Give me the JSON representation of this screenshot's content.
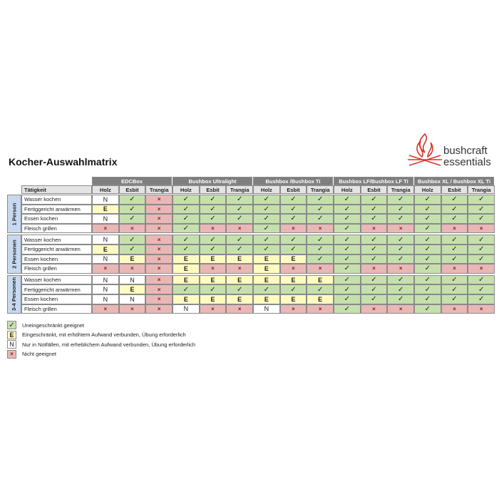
{
  "title": "Kocher-Auswahlmatrix",
  "logo": {
    "line1": "bushcraft",
    "line2": "essentials"
  },
  "table": {
    "activity_header": "Tätigkeit",
    "groups": [
      {
        "name": "EDCBox",
        "fuels": [
          "Holz",
          "Esbit",
          "Trangia"
        ]
      },
      {
        "name": "Bushbox Ultralight",
        "fuels": [
          "Holz",
          "Esbit",
          "Trangia"
        ]
      },
      {
        "name": "Bushbox /Bushbox Ti",
        "fuels": [
          "Holz",
          "Esbit",
          "Trangia"
        ]
      },
      {
        "name": "Bushbox LF/Bushbox LF Ti",
        "fuels": [
          "Holz",
          "Esbit",
          "Trangia"
        ]
      },
      {
        "name": "Bushbox XL / Bushbox XL Ti",
        "fuels": [
          "Holz",
          "Esbit",
          "Trangia"
        ]
      }
    ],
    "row_groups": [
      {
        "label": "1 Person",
        "rows": [
          {
            "activity": "Wasser kochen",
            "cells": [
              "N",
              "✓",
              "×",
              "✓",
              "✓",
              "✓",
              "✓",
              "✓",
              "✓",
              "✓",
              "✓",
              "✓",
              "✓",
              "✓",
              "✓"
            ]
          },
          {
            "activity": "Fertiggericht anwärmen",
            "cells": [
              "E",
              "✓",
              "×",
              "✓",
              "✓",
              "✓",
              "✓",
              "✓",
              "✓",
              "✓",
              "✓",
              "✓",
              "✓",
              "✓",
              "✓"
            ]
          },
          {
            "activity": "Essen kochen",
            "cells": [
              "N",
              "✓",
              "×",
              "✓",
              "✓",
              "✓",
              "✓",
              "✓",
              "✓",
              "✓",
              "✓",
              "✓",
              "✓",
              "✓",
              "✓"
            ]
          },
          {
            "activity": "Fleisch grillen",
            "cells": [
              "×",
              "×",
              "×",
              "✓",
              "×",
              "×",
              "✓",
              "×",
              "×",
              "✓",
              "×",
              "×",
              "✓",
              "×",
              "×"
            ]
          }
        ]
      },
      {
        "label": "2 Personen",
        "rows": [
          {
            "activity": "Wasser kochen",
            "cells": [
              "N",
              "✓",
              "×",
              "✓",
              "✓",
              "✓",
              "✓",
              "✓",
              "✓",
              "✓",
              "✓",
              "✓",
              "✓",
              "✓",
              "✓"
            ]
          },
          {
            "activity": "Fertiggericht anwärmen",
            "cells": [
              "E",
              "✓",
              "×",
              "✓",
              "✓",
              "✓",
              "✓",
              "✓",
              "✓",
              "✓",
              "✓",
              "✓",
              "✓",
              "✓",
              "✓"
            ]
          },
          {
            "activity": "Essen kochen",
            "cells": [
              "N",
              "E",
              "×",
              "E",
              "E",
              "E",
              "E",
              "E",
              "✓",
              "✓",
              "✓",
              "✓",
              "✓",
              "✓",
              "✓"
            ]
          },
          {
            "activity": "Fleisch grillen",
            "cells": [
              "×",
              "×",
              "×",
              "E",
              "×",
              "×",
              "E",
              "×",
              "×",
              "✓",
              "×",
              "×",
              "✓",
              "×",
              "×"
            ]
          }
        ]
      },
      {
        "label": "3-4 Personen",
        "rows": [
          {
            "activity": "Wasser kochen",
            "cells": [
              "N",
              "N",
              "×",
              "E",
              "E",
              "E",
              "E",
              "E",
              "E",
              "✓",
              "✓",
              "✓",
              "✓",
              "✓",
              "✓"
            ]
          },
          {
            "activity": "Fertiggericht anwärmen",
            "cells": [
              "N",
              "E",
              "×",
              "✓",
              "✓",
              "✓",
              "✓",
              "✓",
              "✓",
              "✓",
              "✓",
              "✓",
              "✓",
              "✓",
              "✓"
            ]
          },
          {
            "activity": "Essen kochen",
            "cells": [
              "N",
              "N",
              "×",
              "E",
              "E",
              "E",
              "E",
              "E",
              "E",
              "✓",
              "✓",
              "✓",
              "✓",
              "✓",
              "✓"
            ]
          },
          {
            "activity": "Fleisch grillen",
            "cells": [
              "×",
              "×",
              "×",
              "N",
              "×",
              "×",
              "N",
              "×",
              "×",
              "✓",
              "×",
              "×",
              "✓",
              "×",
              "×"
            ]
          }
        ]
      }
    ]
  },
  "legend": [
    {
      "symbol": "✓",
      "text": "Uneingeschränkt geeignet"
    },
    {
      "symbol": "E",
      "text": "Eingeschränkt, mit erhöhtem Aufwand verbunden, Übung erforderlich"
    },
    {
      "symbol": "N",
      "text": "Nur in Notfällen, mit erheblichem Aufwand verbunden, Übung erforderlich"
    },
    {
      "symbol": "×",
      "text": "Nicht geeignet"
    }
  ]
}
